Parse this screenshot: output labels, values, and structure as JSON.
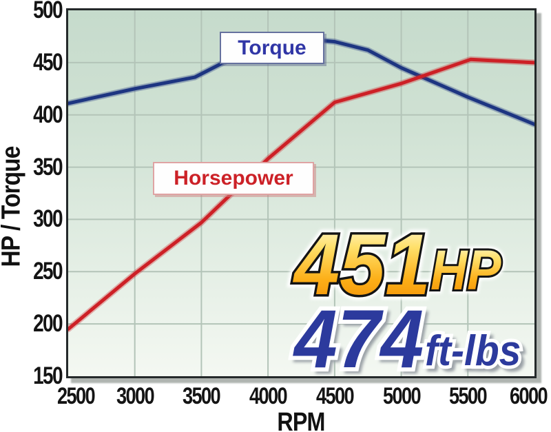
{
  "chart_data": {
    "type": "line",
    "title": "",
    "xlabel": "RPM",
    "ylabel": "HP / Torque",
    "xlim": [
      2500,
      6000
    ],
    "ylim": [
      150,
      500
    ],
    "x_ticks": [
      2500,
      3000,
      3500,
      4000,
      4500,
      5000,
      5500,
      6000
    ],
    "y_ticks": [
      150,
      200,
      250,
      300,
      350,
      400,
      450,
      500
    ],
    "grid": true,
    "gridline_color": "#b3c4b8",
    "plot_bg_top": "#c6dbcc",
    "plot_bg_bottom": "#f4f8f2",
    "legend_position": "inline-labels-on-plot",
    "series": [
      {
        "name": "Torque",
        "color": "#1d3581",
        "units": "ft-lbs",
        "points": [
          [
            2500,
            411
          ],
          [
            3000,
            425
          ],
          [
            3450,
            436
          ],
          [
            4000,
            472
          ],
          [
            4150,
            474
          ],
          [
            4500,
            470
          ],
          [
            4750,
            462
          ],
          [
            5000,
            445
          ],
          [
            5500,
            417
          ],
          [
            6000,
            391
          ]
        ]
      },
      {
        "name": "Horsepower",
        "color": "#cd2026",
        "units": "HP",
        "points": [
          [
            2500,
            195
          ],
          [
            3000,
            248
          ],
          [
            3500,
            297
          ],
          [
            4000,
            358
          ],
          [
            4500,
            412
          ],
          [
            5000,
            430
          ],
          [
            5520,
            453
          ],
          [
            6000,
            450
          ]
        ]
      }
    ],
    "callout": {
      "hp_value": "451",
      "hp_unit": "HP",
      "tq_value": "474",
      "tq_unit": "ft-lbs",
      "hp_gradient_top": "#fffcee",
      "hp_gradient_bottom": "#f08a05",
      "tq_color": "#2c3a9d"
    }
  }
}
